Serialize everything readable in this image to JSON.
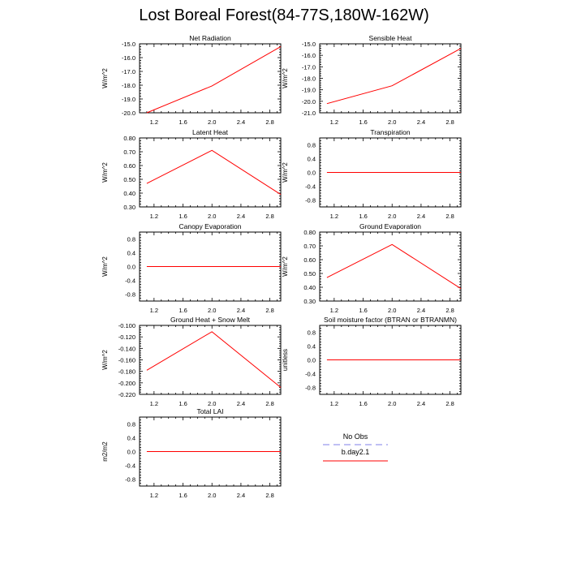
{
  "title": "Lost Boreal Forest(84-77S,180W-162W)",
  "colors": {
    "series": "#ff0000",
    "obs": "#9999ee",
    "axis": "#000000"
  },
  "legend": {
    "entries": [
      {
        "label": "No Obs",
        "color": "#9999ee",
        "style": "dashed"
      },
      {
        "label": "b.day2.1",
        "color": "#ff0000",
        "style": "solid"
      }
    ]
  },
  "chart_data": [
    {
      "type": "line",
      "title": "Net Radiation",
      "ylabel": "W/m^2",
      "x": [
        1.1,
        2.0,
        2.95
      ],
      "y": [
        -20.0,
        -18.05,
        -15.2
      ],
      "xlim": [
        1.0,
        2.95
      ],
      "ylim": [
        -20.0,
        -15.0
      ],
      "xticks": [
        "1.2",
        "1.6",
        "2.0",
        "2.4",
        "2.8"
      ],
      "yticks": [
        "-20.0",
        "-19.0",
        "-18.0",
        "-17.0",
        "-16.0",
        "-15.0"
      ]
    },
    {
      "type": "line",
      "title": "Sensible Heat",
      "ylabel": "W/m^2",
      "x": [
        1.1,
        2.0,
        2.95
      ],
      "y": [
        -20.2,
        -18.65,
        -15.4
      ],
      "xlim": [
        1.0,
        2.95
      ],
      "ylim": [
        -21.0,
        -15.0
      ],
      "xticks": [
        "1.2",
        "1.6",
        "2.0",
        "2.4",
        "2.8"
      ],
      "yticks": [
        "-21.0",
        "-20.0",
        "-19.0",
        "-18.0",
        "-17.0",
        "-16.0",
        "-15.0"
      ]
    },
    {
      "type": "line",
      "title": "Latent Heat",
      "ylabel": "W/m^2",
      "x": [
        1.1,
        2.0,
        2.95
      ],
      "y": [
        0.47,
        0.71,
        0.39
      ],
      "xlim": [
        1.0,
        2.95
      ],
      "ylim": [
        0.3,
        0.8
      ],
      "xticks": [
        "1.2",
        "1.6",
        "2.0",
        "2.4",
        "2.8"
      ],
      "yticks": [
        "0.30",
        "0.40",
        "0.50",
        "0.60",
        "0.70",
        "0.80"
      ]
    },
    {
      "type": "line",
      "title": "Transpiration",
      "ylabel": "W/m^2",
      "x": [
        1.1,
        2.0,
        2.95
      ],
      "y": [
        0.0,
        0.0,
        0.0
      ],
      "xlim": [
        1.0,
        2.95
      ],
      "ylim": [
        -1.0,
        1.0
      ],
      "xticks": [
        "1.2",
        "1.6",
        "2.0",
        "2.4",
        "2.8"
      ],
      "yticks": [
        "-0.8",
        "-0.4",
        "0.0",
        "0.4",
        "0.8"
      ]
    },
    {
      "type": "line",
      "title": "Canopy Evaporation",
      "ylabel": "W/m^2",
      "x": [
        1.1,
        2.0,
        2.95
      ],
      "y": [
        0.0,
        0.0,
        0.0
      ],
      "xlim": [
        1.0,
        2.95
      ],
      "ylim": [
        -1.0,
        1.0
      ],
      "xticks": [
        "1.2",
        "1.6",
        "2.0",
        "2.4",
        "2.8"
      ],
      "yticks": [
        "-0.8",
        "-0.4",
        "0.0",
        "0.4",
        "0.8"
      ]
    },
    {
      "type": "line",
      "title": "Ground Evaporation",
      "ylabel": "W/m^2",
      "x": [
        1.1,
        2.0,
        2.95
      ],
      "y": [
        0.47,
        0.71,
        0.39
      ],
      "xlim": [
        1.0,
        2.95
      ],
      "ylim": [
        0.3,
        0.8
      ],
      "xticks": [
        "1.2",
        "1.6",
        "2.0",
        "2.4",
        "2.8"
      ],
      "yticks": [
        "0.30",
        "0.40",
        "0.50",
        "0.60",
        "0.70",
        "0.80"
      ]
    },
    {
      "type": "line",
      "title": "Ground Heat + Snow Melt",
      "ylabel": "W/m^2",
      "x": [
        1.1,
        2.0,
        2.95
      ],
      "y": [
        -0.178,
        -0.111,
        -0.208
      ],
      "xlim": [
        1.0,
        2.95
      ],
      "ylim": [
        -0.22,
        -0.1
      ],
      "xticks": [
        "1.2",
        "1.6",
        "2.0",
        "2.4",
        "2.8"
      ],
      "yticks": [
        "-0.220",
        "-0.200",
        "-0.180",
        "-0.160",
        "-0.140",
        "-0.120",
        "-0.100"
      ]
    },
    {
      "type": "line",
      "title": "Soil moisture factor (BTRAN or BTRANMN)",
      "ylabel": "unitless",
      "x": [
        1.1,
        2.0,
        2.95
      ],
      "y": [
        0.0,
        0.0,
        0.0
      ],
      "xlim": [
        1.0,
        2.95
      ],
      "ylim": [
        -1.0,
        1.0
      ],
      "xticks": [
        "1.2",
        "1.6",
        "2.0",
        "2.4",
        "2.8"
      ],
      "yticks": [
        "-0.8",
        "-0.4",
        "0.0",
        "0.4",
        "0.8"
      ]
    },
    {
      "type": "line",
      "title": "Total LAI",
      "ylabel": "m2/m2",
      "x": [
        1.1,
        2.0,
        2.95
      ],
      "y": [
        0.0,
        0.0,
        0.0
      ],
      "xlim": [
        1.0,
        2.95
      ],
      "ylim": [
        -1.0,
        1.0
      ],
      "xticks": [
        "1.2",
        "1.6",
        "2.0",
        "2.4",
        "2.8"
      ],
      "yticks": [
        "-0.8",
        "-0.4",
        "0.0",
        "0.4",
        "0.8"
      ]
    }
  ]
}
